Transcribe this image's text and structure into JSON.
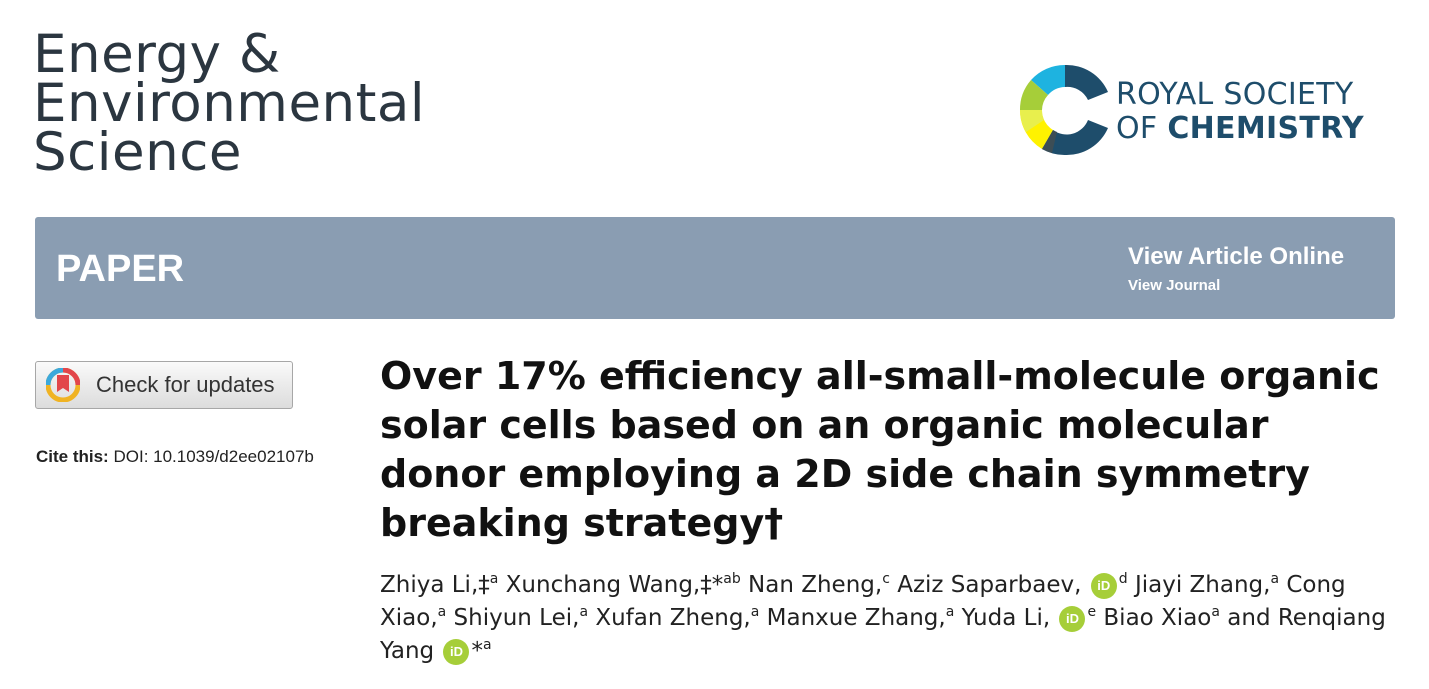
{
  "journal": {
    "title_lines": [
      "Energy &",
      "Environmental",
      "Science"
    ]
  },
  "publisher": {
    "name_line1": "ROYAL SOCIETY",
    "name_line2_prefix": "OF ",
    "name_line2_bold": "CHEMISTRY",
    "logo_colors": [
      "#1e4d6b",
      "#1eb3e0",
      "#a6ce39",
      "#fff200"
    ]
  },
  "banner": {
    "type_label": "PAPER",
    "view_online": "View Article Online",
    "view_journal": "View Journal",
    "background": "#8a9db2"
  },
  "check_updates": {
    "label": "Check for updates"
  },
  "cite": {
    "label": "Cite this:",
    "doi": "DOI: 10.1039/d2ee02107b"
  },
  "title": {
    "text": "Over 17% efficiency all-small-molecule organic solar cells based on an organic molecular donor employing a 2D side chain symmetry breaking strategy",
    "dagger": "†"
  },
  "authors": [
    {
      "name": "Zhiya Li,",
      "marks": "‡",
      "sup": "a"
    },
    {
      "name": "Xunchang Wang,",
      "marks": "‡*",
      "sup": "ab"
    },
    {
      "name": "Nan Zheng,",
      "marks": "",
      "sup": "c"
    },
    {
      "name": "Aziz Saparbaev,",
      "marks": "",
      "sup": "d",
      "orcid": "iD"
    },
    {
      "name": "Jiayi Zhang,",
      "marks": "",
      "sup": "a"
    },
    {
      "name": "Cong Xiao,",
      "marks": "",
      "sup": "a"
    },
    {
      "name": "Shiyun Lei,",
      "marks": "",
      "sup": "a"
    },
    {
      "name": "Xufan Zheng,",
      "marks": "",
      "sup": "a"
    },
    {
      "name": "Manxue Zhang,",
      "marks": "",
      "sup": "a"
    },
    {
      "name": "Yuda Li,",
      "marks": "",
      "sup": "e",
      "orcid": "iD"
    },
    {
      "name": "Biao Xiao",
      "marks": "",
      "sup": "a"
    },
    {
      "name": "and Renqiang Yang",
      "marks": "*",
      "sup": "a",
      "orcid": "iD"
    }
  ]
}
